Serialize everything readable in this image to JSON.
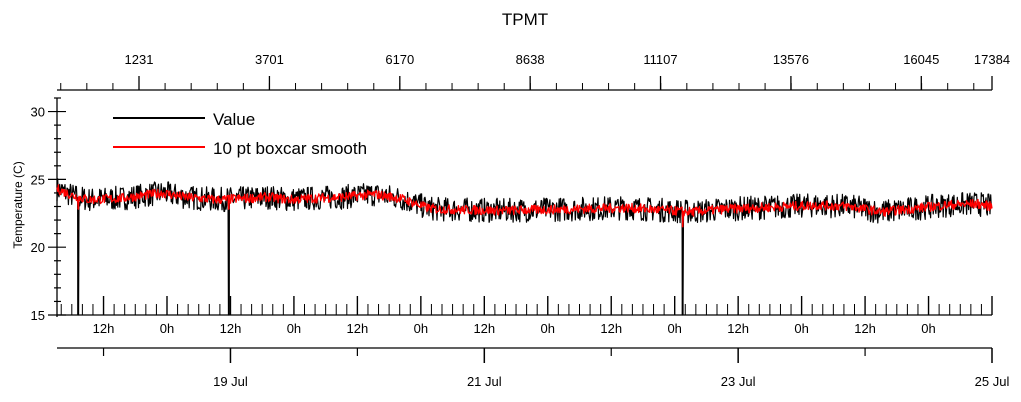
{
  "chart_data": {
    "type": "line",
    "title": "TPMT",
    "ylabel": "Temperature (C)",
    "xlabel": "",
    "ylim": [
      15,
      31
    ],
    "xlim_hours": [
      0,
      176.8
    ],
    "grid": false,
    "legend_position": "top-left",
    "y_ticks": [
      15,
      20,
      25,
      30
    ],
    "top_axis_ticks": [
      1231,
      3701,
      6170,
      8638,
      11107,
      13576,
      16045,
      17384
    ],
    "bottom_hour_ticks": [
      "12h",
      "0h",
      "12h",
      "0h",
      "12h",
      "0h",
      "12h",
      "0h",
      "12h",
      "0h",
      "12h",
      "0h",
      "12h",
      "0h"
    ],
    "bottom_date_ticks": [
      "19 Jul",
      "21 Jul",
      "23 Jul",
      "25 Jul"
    ],
    "series": [
      {
        "name": "Value",
        "color": "#000000",
        "noise_band": 0.9,
        "hours": [
          0,
          3,
          6,
          12,
          20,
          24,
          30,
          36,
          40,
          44,
          48,
          54,
          60,
          65,
          70,
          72,
          84,
          96,
          108,
          116,
          120,
          126,
          132,
          144,
          150,
          156,
          168,
          174,
          176.8
        ],
        "values": [
          24.3,
          23.8,
          23.5,
          23.6,
          24.0,
          23.7,
          23.5,
          23.6,
          23.7,
          23.5,
          23.6,
          23.7,
          23.9,
          23.6,
          22.9,
          22.8,
          22.7,
          22.8,
          22.9,
          22.7,
          22.6,
          22.8,
          22.9,
          23.1,
          23.0,
          22.6,
          23.1,
          23.2,
          23.0
        ],
        "dips": [
          {
            "hour": 4.0,
            "value": 15.0
          },
          {
            "hour": 32.5,
            "value": 15.0
          },
          {
            "hour": 118.3,
            "value": 15.0
          }
        ]
      },
      {
        "name": "10 pt boxcar smooth",
        "color": "#ff0000",
        "noise_band": 0.35,
        "hours": [
          0,
          3,
          6,
          12,
          20,
          24,
          30,
          36,
          40,
          44,
          48,
          54,
          60,
          65,
          70,
          72,
          84,
          96,
          108,
          116,
          120,
          126,
          132,
          144,
          150,
          156,
          168,
          174,
          176.8
        ],
        "values": [
          24.3,
          23.8,
          23.5,
          23.6,
          24.0,
          23.7,
          23.5,
          23.6,
          23.7,
          23.5,
          23.6,
          23.7,
          23.9,
          23.6,
          22.9,
          22.8,
          22.7,
          22.8,
          22.9,
          22.7,
          22.6,
          22.8,
          22.9,
          23.1,
          23.0,
          22.6,
          23.1,
          23.2,
          23.0
        ],
        "dips": [
          {
            "hour": 4.0,
            "value": 22.8
          },
          {
            "hour": 32.5,
            "value": 22.8
          },
          {
            "hour": 118.3,
            "value": 21.5
          }
        ]
      }
    ]
  }
}
